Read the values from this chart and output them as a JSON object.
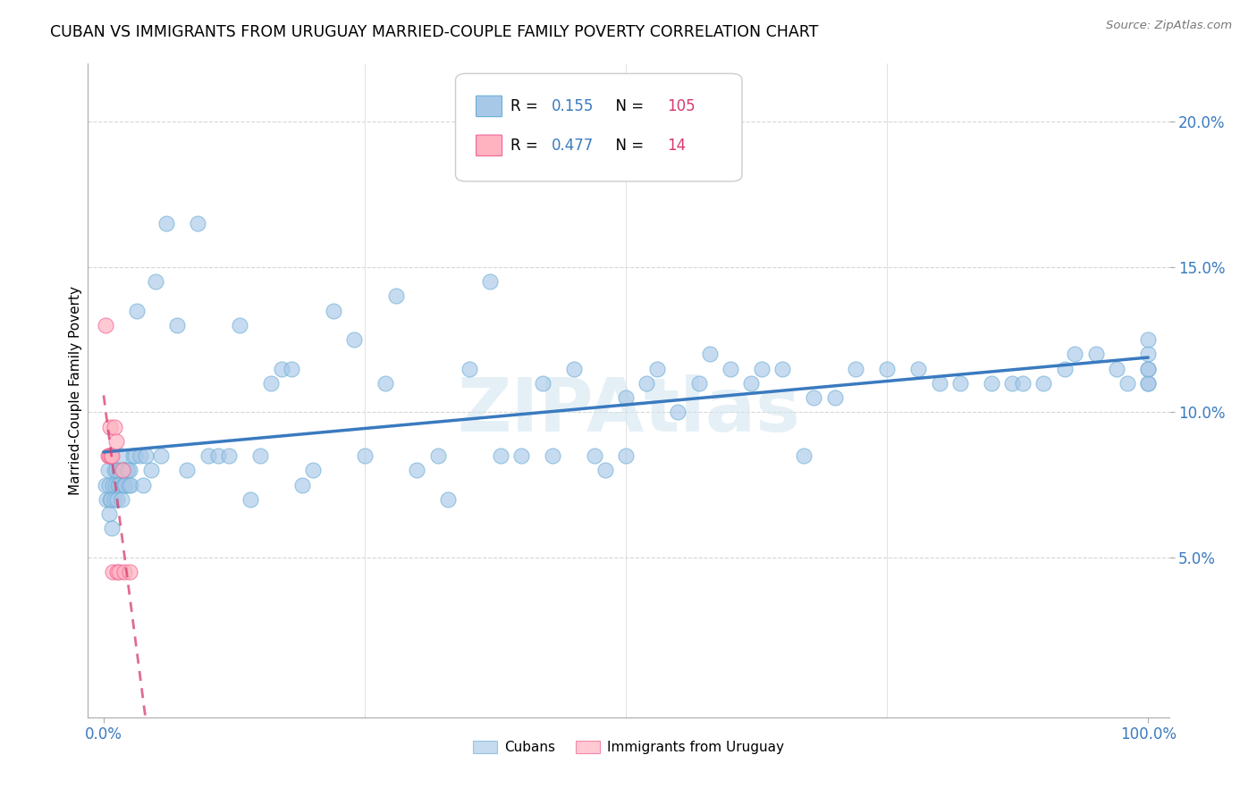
{
  "title": "CUBAN VS IMMIGRANTS FROM URUGUAY MARRIED-COUPLE FAMILY POVERTY CORRELATION CHART",
  "source": "Source: ZipAtlas.com",
  "ylabel": "Married-Couple Family Poverty",
  "cubans_R": 0.155,
  "cubans_N": 105,
  "uruguay_R": 0.477,
  "uruguay_N": 14,
  "cubans_color": "#a8c8e8",
  "cubans_edge_color": "#6baed6",
  "uruguay_color": "#ffb3c1",
  "uruguay_edge_color": "#f06292",
  "trendline_cubans_color": "#3a7abf",
  "trendline_uruguay_color": "#d63b6e",
  "legend_R_color": "#3a7abf",
  "legend_N_color": "#d63b6e",
  "ytick_color": "#3a7abf",
  "xtick_color": "#3a7abf",
  "watermark_color": "#d0e4f0",
  "cubans_x": [
    0.2,
    0.3,
    0.4,
    0.5,
    0.5,
    0.6,
    0.6,
    0.7,
    0.8,
    0.9,
    1.0,
    1.0,
    1.1,
    1.2,
    1.3,
    1.4,
    1.5,
    1.5,
    1.6,
    1.7,
    1.8,
    1.9,
    2.0,
    2.0,
    2.1,
    2.2,
    2.3,
    2.4,
    2.5,
    2.6,
    2.8,
    3.0,
    3.2,
    3.5,
    3.8,
    4.0,
    4.5,
    5.0,
    5.5,
    6.0,
    7.0,
    8.0,
    9.0,
    10.0,
    11.0,
    12.0,
    13.0,
    14.0,
    15.0,
    16.0,
    17.0,
    18.0,
    19.0,
    20.0,
    22.0,
    24.0,
    25.0,
    27.0,
    28.0,
    30.0,
    32.0,
    33.0,
    35.0,
    37.0,
    38.0,
    40.0,
    42.0,
    43.0,
    45.0,
    47.0,
    48.0,
    50.0,
    50.0,
    52.0,
    53.0,
    55.0,
    57.0,
    58.0,
    60.0,
    62.0,
    63.0,
    65.0,
    67.0,
    68.0,
    70.0,
    72.0,
    75.0,
    78.0,
    80.0,
    82.0,
    85.0,
    87.0,
    88.0,
    90.0,
    92.0,
    93.0,
    95.0,
    97.0,
    98.0,
    100.0,
    100.0,
    100.0,
    100.0,
    100.0,
    100.0
  ],
  "cubans_y": [
    7.5,
    7.0,
    8.0,
    6.5,
    7.5,
    7.0,
    8.5,
    7.0,
    6.0,
    7.5,
    7.0,
    8.0,
    7.5,
    8.0,
    7.0,
    7.5,
    8.0,
    7.5,
    8.5,
    7.0,
    8.0,
    7.5,
    7.5,
    8.0,
    7.5,
    8.0,
    8.0,
    7.5,
    8.0,
    7.5,
    8.5,
    8.5,
    13.5,
    8.5,
    7.5,
    8.5,
    8.0,
    14.5,
    8.5,
    16.5,
    13.0,
    8.0,
    16.5,
    8.5,
    8.5,
    8.5,
    13.0,
    7.0,
    8.5,
    11.0,
    11.5,
    11.5,
    7.5,
    8.0,
    13.5,
    12.5,
    8.5,
    11.0,
    14.0,
    8.0,
    8.5,
    7.0,
    11.5,
    14.5,
    8.5,
    8.5,
    11.0,
    8.5,
    11.5,
    8.5,
    8.0,
    8.5,
    10.5,
    11.0,
    11.5,
    10.0,
    11.0,
    12.0,
    11.5,
    11.0,
    11.5,
    11.5,
    8.5,
    10.5,
    10.5,
    11.5,
    11.5,
    11.5,
    11.0,
    11.0,
    11.0,
    11.0,
    11.0,
    11.0,
    11.5,
    12.0,
    12.0,
    11.5,
    11.0,
    11.0,
    11.5,
    12.0,
    11.0,
    12.5,
    11.5
  ],
  "uruguay_x": [
    0.2,
    0.4,
    0.5,
    0.6,
    0.7,
    0.8,
    0.9,
    1.0,
    1.2,
    1.3,
    1.5,
    1.8,
    2.0,
    2.5
  ],
  "uruguay_y": [
    13.0,
    8.5,
    8.5,
    9.5,
    8.5,
    8.5,
    4.5,
    9.5,
    9.0,
    4.5,
    4.5,
    8.0,
    4.5,
    4.5
  ],
  "xlim": [
    -1.5,
    102
  ],
  "ylim": [
    -0.5,
    22.0
  ],
  "yticks": [
    5.0,
    10.0,
    15.0,
    20.0
  ],
  "xticks": [
    0.0,
    100.0
  ]
}
